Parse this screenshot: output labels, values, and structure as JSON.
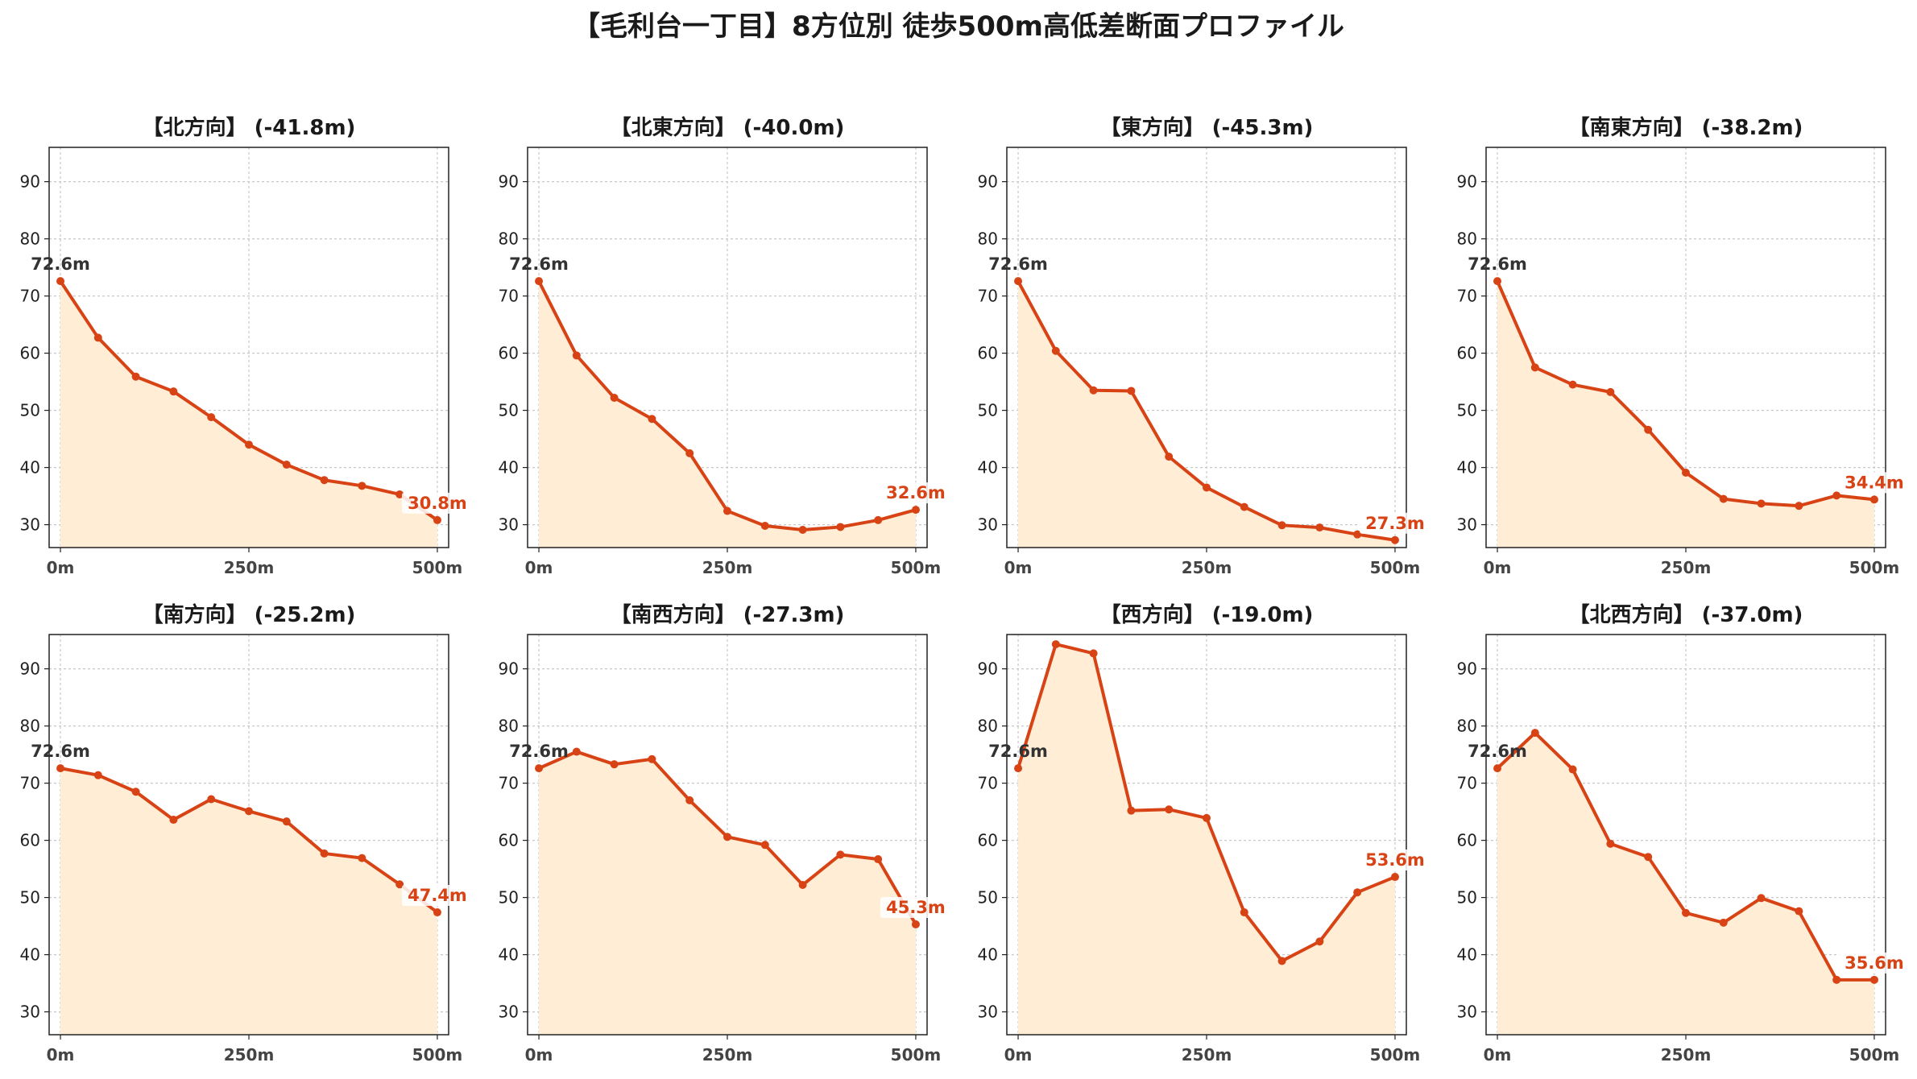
{
  "colors": {
    "line": "#d84315",
    "fill": "#ffedd5",
    "grid": "#c8c8c8",
    "axis": "#222222",
    "start_label": "#333333",
    "end_label": "#d84315"
  },
  "suptitle": "【毛利台一丁目】8方位別 徒歩500m高低差断面プロファイル",
  "x_tick_labels": [
    "0m",
    "250m",
    "500m"
  ],
  "y_tick_labels": [
    "30",
    "40",
    "50",
    "60",
    "70",
    "80",
    "90"
  ],
  "chart_data": [
    {
      "type": "area",
      "title": "【北方向】 (-41.8m)",
      "x": [
        0,
        50,
        100,
        150,
        200,
        250,
        300,
        350,
        400,
        450,
        500
      ],
      "y": [
        72.6,
        62.7,
        55.9,
        53.3,
        48.8,
        44.0,
        40.5,
        37.8,
        36.8,
        35.3,
        30.8
      ],
      "start_label": "72.6m",
      "end_label": "30.8m",
      "xlim": [
        -15,
        515
      ],
      "ylim": [
        26,
        96
      ],
      "xticks": [
        0,
        250,
        500
      ],
      "yticks": [
        30,
        40,
        50,
        60,
        70,
        80,
        90
      ],
      "grid": true
    },
    {
      "type": "area",
      "title": "【北東方向】 (-40.0m)",
      "x": [
        0,
        50,
        100,
        150,
        200,
        250,
        300,
        350,
        400,
        450,
        500
      ],
      "y": [
        72.6,
        59.6,
        52.2,
        48.5,
        42.5,
        32.4,
        29.8,
        29.1,
        29.6,
        30.8,
        32.6
      ],
      "start_label": "72.6m",
      "end_label": "32.6m",
      "xlim": [
        -15,
        515
      ],
      "ylim": [
        26,
        96
      ],
      "xticks": [
        0,
        250,
        500
      ],
      "yticks": [
        30,
        40,
        50,
        60,
        70,
        80,
        90
      ],
      "grid": true
    },
    {
      "type": "area",
      "title": "【東方向】 (-45.3m)",
      "x": [
        0,
        50,
        100,
        150,
        200,
        250,
        300,
        350,
        400,
        450,
        500
      ],
      "y": [
        72.6,
        60.4,
        53.5,
        53.4,
        41.9,
        36.5,
        33.1,
        29.9,
        29.5,
        28.3,
        27.3
      ],
      "start_label": "72.6m",
      "end_label": "27.3m",
      "xlim": [
        -15,
        515
      ],
      "ylim": [
        26,
        96
      ],
      "xticks": [
        0,
        250,
        500
      ],
      "yticks": [
        30,
        40,
        50,
        60,
        70,
        80,
        90
      ],
      "grid": true
    },
    {
      "type": "area",
      "title": "【南東方向】 (-38.2m)",
      "x": [
        0,
        50,
        100,
        150,
        200,
        250,
        300,
        350,
        400,
        450,
        500
      ],
      "y": [
        72.6,
        57.5,
        54.5,
        53.2,
        46.6,
        39.1,
        34.5,
        33.7,
        33.3,
        35.1,
        34.4
      ],
      "start_label": "72.6m",
      "end_label": "34.4m",
      "xlim": [
        -15,
        515
      ],
      "ylim": [
        26,
        96
      ],
      "xticks": [
        0,
        250,
        500
      ],
      "yticks": [
        30,
        40,
        50,
        60,
        70,
        80,
        90
      ],
      "grid": true
    },
    {
      "type": "area",
      "title": "【南方向】 (-25.2m)",
      "x": [
        0,
        50,
        100,
        150,
        200,
        250,
        300,
        350,
        400,
        450,
        500
      ],
      "y": [
        72.6,
        71.4,
        68.5,
        63.6,
        67.2,
        65.1,
        63.3,
        57.7,
        56.9,
        52.3,
        47.4
      ],
      "start_label": "72.6m",
      "end_label": "47.4m",
      "xlim": [
        -15,
        515
      ],
      "ylim": [
        26,
        96
      ],
      "xticks": [
        0,
        250,
        500
      ],
      "yticks": [
        30,
        40,
        50,
        60,
        70,
        80,
        90
      ],
      "grid": true
    },
    {
      "type": "area",
      "title": "【南西方向】 (-27.3m)",
      "x": [
        0,
        50,
        100,
        150,
        200,
        250,
        300,
        350,
        400,
        450,
        500
      ],
      "y": [
        72.6,
        75.5,
        73.3,
        74.2,
        67.0,
        60.6,
        59.2,
        52.2,
        57.5,
        56.7,
        45.3
      ],
      "start_label": "72.6m",
      "end_label": "45.3m",
      "xlim": [
        -15,
        515
      ],
      "ylim": [
        26,
        96
      ],
      "xticks": [
        0,
        250,
        500
      ],
      "yticks": [
        30,
        40,
        50,
        60,
        70,
        80,
        90
      ],
      "grid": true
    },
    {
      "type": "area",
      "title": "【西方向】 (-19.0m)",
      "x": [
        0,
        50,
        100,
        150,
        200,
        250,
        300,
        350,
        400,
        450,
        500
      ],
      "y": [
        72.6,
        94.3,
        92.7,
        65.2,
        65.4,
        63.9,
        47.4,
        38.9,
        42.3,
        50.9,
        53.6
      ],
      "start_label": "72.6m",
      "end_label": "53.6m",
      "xlim": [
        -15,
        515
      ],
      "ylim": [
        26,
        96
      ],
      "xticks": [
        0,
        250,
        500
      ],
      "yticks": [
        30,
        40,
        50,
        60,
        70,
        80,
        90
      ],
      "grid": true
    },
    {
      "type": "area",
      "title": "【北西方向】 (-37.0m)",
      "x": [
        0,
        50,
        100,
        150,
        200,
        250,
        300,
        350,
        400,
        450,
        500
      ],
      "y": [
        72.6,
        78.8,
        72.4,
        59.4,
        57.1,
        47.3,
        45.6,
        49.9,
        47.6,
        35.6,
        35.6
      ],
      "start_label": "72.6m",
      "end_label": "35.6m",
      "xlim": [
        -15,
        515
      ],
      "ylim": [
        26,
        96
      ],
      "xticks": [
        0,
        250,
        500
      ],
      "yticks": [
        30,
        40,
        50,
        60,
        70,
        80,
        90
      ],
      "grid": true
    }
  ]
}
